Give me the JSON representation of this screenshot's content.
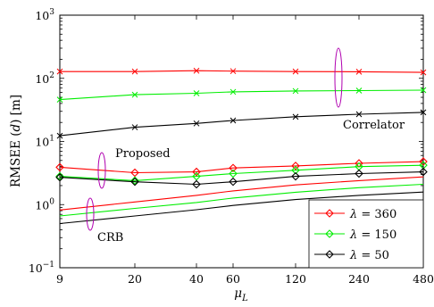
{
  "chart_data": {
    "type": "line",
    "x_scale": "categorical",
    "y_scale": "log",
    "ylim": [
      0.1,
      1000
    ],
    "grid": false,
    "legend_position": "bottom-right",
    "x_tick_labels": [
      "9",
      "20",
      "40",
      "60",
      "120",
      "240",
      "480"
    ],
    "y_ticks": [
      {
        "value": 0.1,
        "base": "10",
        "exp": "−1"
      },
      {
        "value": 1,
        "base": "10",
        "exp": "0"
      },
      {
        "value": 10,
        "base": "10",
        "exp": "1"
      },
      {
        "value": 100,
        "base": "10",
        "exp": "2"
      },
      {
        "value": 1000,
        "base": "10",
        "exp": "3"
      }
    ],
    "xlabel": {
      "main": "μ",
      "sub": "L"
    },
    "ylabel": {
      "prefix": "RMSEE",
      "var": "d",
      "unit": "[m]"
    },
    "colors": {
      "red": "#ff0000",
      "green": "#00ee00",
      "black": "#000000",
      "ellipse": "#b000b0"
    },
    "legend": [
      {
        "symbol": "λ",
        "rel": " = ",
        "value": "360",
        "color": "#ff0000",
        "marker": "diamond"
      },
      {
        "symbol": "λ",
        "rel": " = ",
        "value": "150",
        "color": "#00ee00",
        "marker": "diamond"
      },
      {
        "symbol": "λ",
        "rel": " = ",
        "value": "50",
        "color": "#000000",
        "marker": "diamond"
      }
    ],
    "annotations": {
      "correlator": "Correlator",
      "proposed": "Proposed",
      "crb": "CRB"
    },
    "series": [
      {
        "group": "Correlator",
        "lambda": "360",
        "color": "#ff0000",
        "marker": "x",
        "x": [
          0,
          1,
          2,
          3,
          4,
          5,
          6
        ],
        "y": [
          128,
          128,
          132,
          130,
          128,
          127,
          124
        ]
      },
      {
        "group": "Correlator",
        "lambda": "150",
        "color": "#00ee00",
        "marker": "x",
        "x": [
          0,
          1,
          2,
          3,
          4,
          5,
          6
        ],
        "y": [
          46,
          55,
          58,
          61,
          63,
          64,
          65
        ]
      },
      {
        "group": "Correlator",
        "lambda": "50",
        "color": "#000000",
        "marker": "x",
        "x": [
          0,
          1,
          2,
          3,
          4,
          5,
          6
        ],
        "y": [
          12.3,
          16.8,
          19.3,
          21.5,
          24.6,
          27.0,
          28.9
        ]
      },
      {
        "group": "Proposed",
        "lambda": "360",
        "color": "#ff0000",
        "marker": "diamond",
        "x": [
          0,
          1,
          2,
          3,
          4,
          5,
          6
        ],
        "y": [
          3.9,
          3.2,
          3.3,
          3.8,
          4.1,
          4.5,
          4.8
        ]
      },
      {
        "group": "Proposed",
        "lambda": "150",
        "color": "#00ee00",
        "marker": "diamond",
        "x": [
          0,
          1,
          2,
          3,
          4,
          5,
          6
        ],
        "y": [
          2.8,
          2.4,
          2.8,
          3.1,
          3.5,
          4.0,
          4.2
        ]
      },
      {
        "group": "Proposed",
        "lambda": "50",
        "color": "#000000",
        "marker": "diamond",
        "x": [
          0,
          1,
          2,
          3,
          4,
          5,
          6
        ],
        "y": [
          2.7,
          2.3,
          2.1,
          2.3,
          2.8,
          3.1,
          3.3
        ]
      },
      {
        "group": "CRB",
        "lambda": "360",
        "color": "#ff0000",
        "marker": "none",
        "x": [
          0,
          1,
          2,
          3,
          4,
          5,
          6
        ],
        "y": [
          0.82,
          1.1,
          1.4,
          1.65,
          2.05,
          2.4,
          2.75
        ]
      },
      {
        "group": "CRB",
        "lambda": "150",
        "color": "#00ee00",
        "marker": "none",
        "x": [
          0,
          1,
          2,
          3,
          4,
          5,
          6
        ],
        "y": [
          0.66,
          0.87,
          1.08,
          1.27,
          1.57,
          1.85,
          2.1
        ]
      },
      {
        "group": "CRB",
        "lambda": "50",
        "color": "#000000",
        "marker": "none",
        "x": [
          0,
          1,
          2,
          3,
          4,
          5,
          6
        ],
        "y": [
          0.5,
          0.66,
          0.83,
          0.97,
          1.2,
          1.4,
          1.58
        ]
      }
    ]
  }
}
